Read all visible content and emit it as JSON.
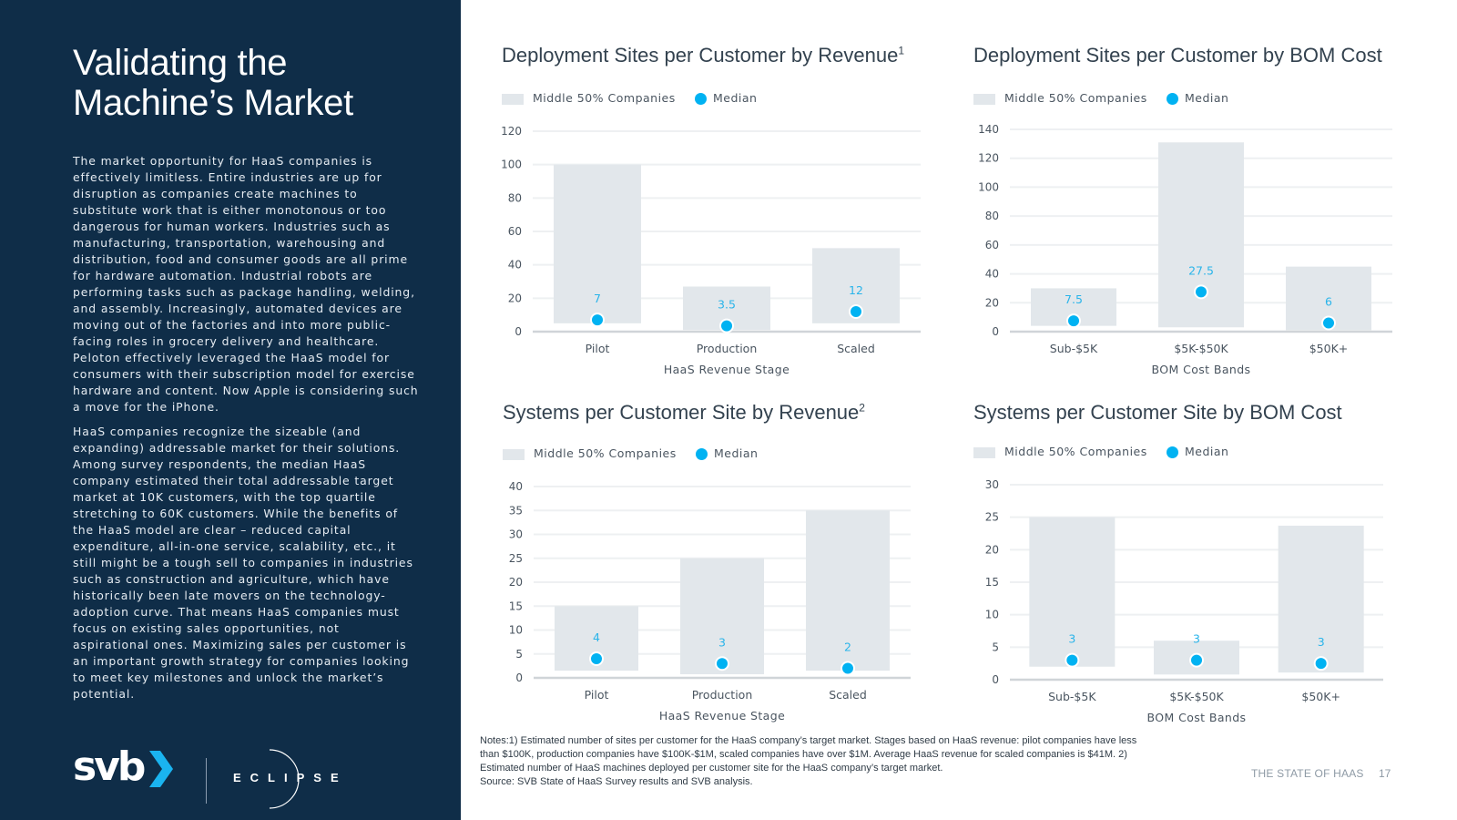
{
  "sidebar": {
    "title_line1": "Validating the",
    "title_line2": "Machine’s Market",
    "paragraphs": [
      "The market opportunity for HaaS companies is effectively limitless. Entire industries are up for disruption as companies create machines to substitute work that is either monotonous or too dangerous for human workers. Industries such as manufacturing, transportation, warehousing and distribution, food and consumer goods are all prime for hardware automation. Industrial robots are performing tasks such as package handling, welding, and assembly. Increasingly, automated devices are moving out of the factories and into more public-facing roles in grocery delivery and healthcare. Peloton effectively leveraged the HaaS model for consumers with their subscription model for exercise hardware and content. Now Apple is considering such a move for the iPhone.",
      "HaaS companies recognize the sizeable (and expanding) addressable market for their solutions. Among survey respondents, the median HaaS company estimated their total addressable target market at 10K customers, with the top quartile stretching to 60K customers. While the benefits of the HaaS model are clear – reduced capital expenditure, all-in-one service, scalability, etc., it still might be a tough sell to companies in industries such as construction and agriculture, which have historically been late movers on the technology-adoption curve. That means HaaS companies must focus on existing sales opportunities, not aspirational ones. Maximizing sales per customer is an important growth strategy for companies looking to meet key milestones and unlock the market’s potential."
    ],
    "logo_svb": "svb",
    "logo_eclipse": "ECLIPSE"
  },
  "colors": {
    "sidebar_bg": "#0f2d48",
    "bar": "#e2e7eb",
    "median": "#00b2f2",
    "median_label": "#29b4ea",
    "svb_chevron": "#1ab4f0"
  },
  "legend": {
    "range_label": "Middle 50% Companies",
    "median_label": "Median"
  },
  "chart_data": [
    {
      "type": "bar",
      "title": "Deployment Sites per Customer by Revenue",
      "title_sup": "1",
      "categories": [
        "Pilot",
        "Production",
        "Scaled"
      ],
      "series": [
        {
          "name": "Middle 50% Companies",
          "low": [
            5,
            1,
            5
          ],
          "high": [
            100,
            27,
            50
          ]
        },
        {
          "name": "Median",
          "values": [
            7,
            3.5,
            12
          ],
          "labels": [
            "7",
            "3.5",
            "12"
          ]
        }
      ],
      "xlabel": "HaaS Revenue Stage",
      "ylabel": "",
      "ylim": [
        0,
        120
      ],
      "yticks": [
        0,
        20,
        40,
        60,
        80,
        100,
        120
      ],
      "grid": true,
      "legend": "top-left"
    },
    {
      "type": "bar",
      "title": "Deployment Sites per Customer by BOM Cost",
      "title_sup": "",
      "categories": [
        "Sub-$5K",
        "$5K-$50K",
        "$50K+"
      ],
      "series": [
        {
          "name": "Middle 50% Companies",
          "low": [
            4,
            3,
            1
          ],
          "high": [
            30,
            131,
            45
          ]
        },
        {
          "name": "Median",
          "values": [
            7.5,
            27.5,
            6
          ],
          "labels": [
            "7.5",
            "27.5",
            "6"
          ]
        }
      ],
      "xlabel": "BOM Cost Bands",
      "ylabel": "",
      "ylim": [
        0,
        140
      ],
      "yticks": [
        0,
        20,
        40,
        60,
        80,
        100,
        120,
        140
      ],
      "grid": true,
      "legend": "top-left"
    },
    {
      "type": "bar",
      "title": "Systems per Customer Site by Revenue",
      "title_sup": "2",
      "categories": [
        "Pilot",
        "Production",
        "Scaled"
      ],
      "series": [
        {
          "name": "Middle 50% Companies",
          "low": [
            1.5,
            0.75,
            1.5
          ],
          "high": [
            15,
            25,
            35
          ]
        },
        {
          "name": "Median",
          "values": [
            4,
            3,
            2
          ],
          "labels": [
            "4",
            "3",
            "2"
          ]
        }
      ],
      "xlabel": "HaaS Revenue Stage",
      "ylabel": "",
      "ylim": [
        0,
        40
      ],
      "yticks": [
        0,
        5,
        10,
        15,
        20,
        25,
        30,
        35,
        40
      ],
      "grid": true,
      "legend": "top-left"
    },
    {
      "type": "bar",
      "title": "Systems per Customer Site by BOM Cost",
      "title_sup": "",
      "categories": [
        "Sub-$5K",
        "$5K-$50K",
        "$50K+"
      ],
      "series": [
        {
          "name": "Middle 50% Companies",
          "low": [
            2,
            0.8,
            1.1
          ],
          "high": [
            25,
            6,
            23.7
          ]
        },
        {
          "name": "Median",
          "values": [
            3,
            3,
            2.5
          ],
          "labels": [
            "3",
            "3",
            "3"
          ]
        }
      ],
      "xlabel": "BOM Cost Bands",
      "ylabel": "",
      "ylim": [
        0,
        30
      ],
      "yticks": [
        0,
        5,
        10,
        15,
        20,
        25,
        30
      ],
      "grid": true,
      "legend": "top-left"
    }
  ],
  "footer": {
    "notes_line1": "Notes:1) Estimated number of sites per customer for the HaaS company’s target market. Stages based on HaaS revenue: pilot companies have less than $100K, production companies have $100K-$1M, scaled companies have over $1M. Average HaaS revenue for scaled companies is $41M. 2) Estimated number of HaaS machines deployed per customer site for the HaaS company’s target market.",
    "source": "Source: SVB State of HaaS Survey results and SVB analysis.",
    "report_title": "THE STATE OF HAAS",
    "page_number": "17"
  }
}
